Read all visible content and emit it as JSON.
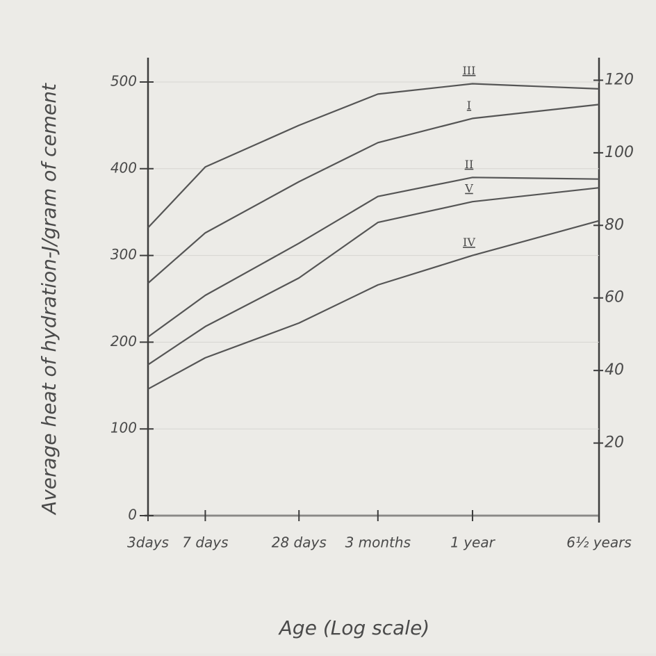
{
  "chart_data": {
    "type": "line",
    "y_label": "Average heat of hydration-J/gram of cement",
    "x_label": "Age (Log scale)",
    "x_log": true,
    "x": [
      3,
      7,
      28,
      90,
      365,
      2372
    ],
    "xlim": [
      3,
      2372
    ],
    "xticks": [
      {
        "value": 3,
        "label": "3days"
      },
      {
        "value": 7,
        "label": "7 days"
      },
      {
        "value": 28,
        "label": "28 days"
      },
      {
        "value": 90,
        "label": "3 months"
      },
      {
        "value": 365,
        "label": "1 year"
      },
      {
        "value": 2372,
        "label": "6½ years"
      }
    ],
    "ylim": [
      0,
      520
    ],
    "yticks": [
      0,
      100,
      200,
      300,
      400,
      500
    ],
    "y2lim": [
      0,
      124.3
    ],
    "y2ticks": [
      20,
      40,
      60,
      80,
      100,
      120
    ],
    "series": [
      {
        "name": "III",
        "color": "#555555",
        "values": [
          332,
          402,
          450,
          486,
          498,
          492
        ]
      },
      {
        "name": "I",
        "color": "#555555",
        "values": [
          268,
          326,
          385,
          430,
          458,
          474
        ]
      },
      {
        "name": "II",
        "color": "#555555",
        "values": [
          206,
          254,
          314,
          368,
          390,
          388
        ]
      },
      {
        "name": "V",
        "color": "#555555",
        "values": [
          174,
          218,
          274,
          338,
          362,
          378
        ]
      },
      {
        "name": "IV",
        "color": "#555555",
        "values": [
          146,
          182,
          222,
          266,
          300,
          340
        ]
      }
    ]
  }
}
